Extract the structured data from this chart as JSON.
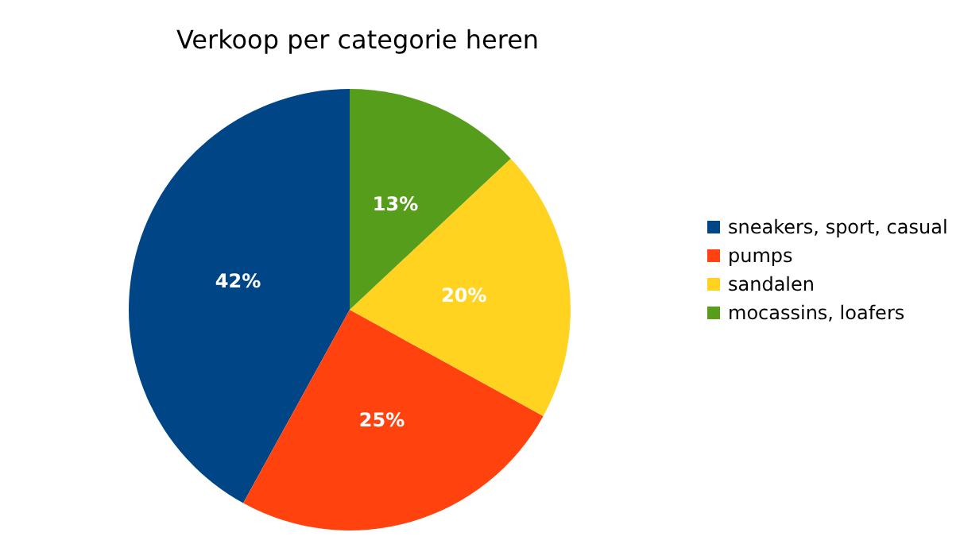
{
  "chart_data": {
    "type": "pie",
    "title": "Verkoop per categorie heren",
    "categories": [
      "sneakers, sport, casual",
      "pumps",
      "sandalen",
      "mocassins, loafers"
    ],
    "values": [
      42,
      25,
      20,
      13
    ],
    "colors": [
      "#004586",
      "#ff420e",
      "#ffd320",
      "#579d1c"
    ],
    "value_labels": [
      "42%",
      "25%",
      "20%",
      "13%"
    ],
    "legend": "right"
  }
}
